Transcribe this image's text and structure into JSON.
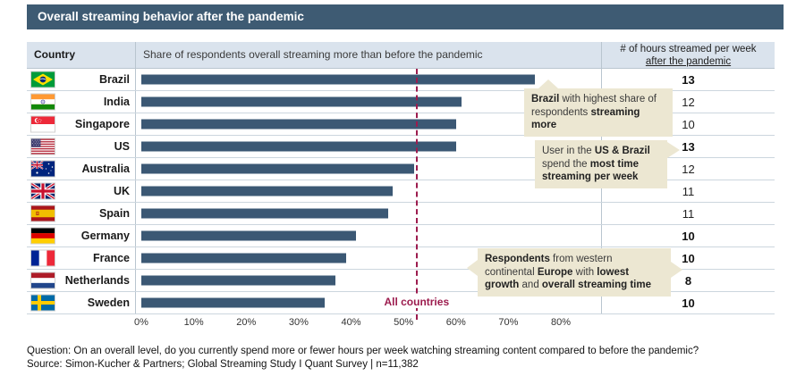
{
  "header": {
    "title": "Overall streaming behavior after the pandemic"
  },
  "table": {
    "columns": {
      "country": "Country",
      "share": "Share of respondents overall streaming more than before the pandemic",
      "hours_line1": "# of hours streamed per week",
      "hours_line2": "after the pandemic"
    }
  },
  "chart_data": {
    "type": "bar",
    "orientation": "horizontal",
    "title": "Overall streaming behavior after the pandemic",
    "categories": [
      "Brazil",
      "India",
      "Singapore",
      "US",
      "Australia",
      "UK",
      "Spain",
      "Germany",
      "France",
      "Netherlands",
      "Sweden"
    ],
    "flag_codes": [
      "br",
      "in",
      "sg",
      "us",
      "au",
      "gb",
      "es",
      "de",
      "fr",
      "nl",
      "se"
    ],
    "series": [
      {
        "name": "Share of respondents overall streaming more than before the pandemic",
        "unit": "%",
        "values": [
          75,
          61,
          60,
          60,
          52,
          48,
          47,
          41,
          39,
          37,
          35
        ]
      },
      {
        "name": "# of hours streamed per week after the pandemic",
        "unit": "hours",
        "values": [
          13,
          12,
          10,
          13,
          12,
          11,
          11,
          10,
          10,
          8,
          10
        ],
        "bold_flags": [
          true,
          false,
          false,
          true,
          false,
          false,
          false,
          true,
          true,
          true,
          true
        ]
      }
    ],
    "xlim": [
      0,
      80
    ],
    "x_ticks": [
      "0%",
      "10%",
      "20%",
      "30%",
      "40%",
      "50%",
      "60%",
      "70%",
      "80%"
    ],
    "grid": "row-separators-only",
    "reference_line": {
      "label": "All countries",
      "value": 52.5
    }
  },
  "annotations": [
    {
      "segments": [
        {
          "t": "Brazil",
          "b": true
        },
        {
          "t": " with highest share of respondents ",
          "b": false
        },
        {
          "t": "streaming more",
          "b": true
        }
      ]
    },
    {
      "segments": [
        {
          "t": "User in the ",
          "b": false
        },
        {
          "t": "US & Brazil",
          "b": true
        },
        {
          "t": " spend the ",
          "b": false
        },
        {
          "t": "most time streaming per week",
          "b": true
        }
      ]
    },
    {
      "segments": [
        {
          "t": "Respondents",
          "b": true
        },
        {
          "t": " from western continental ",
          "b": false
        },
        {
          "t": "Europe",
          "b": true
        },
        {
          "t": " with ",
          "b": false
        },
        {
          "t": "lowest growth",
          "b": true
        },
        {
          "t": " and ",
          "b": false
        },
        {
          "t": "overall streaming time",
          "b": true
        }
      ]
    }
  ],
  "footer": {
    "question": "Question: On an overall level, do you currently spend more or fewer hours per week watching streaming content compared to before the pandemic?",
    "source": "Source: Simon-Kucher & Partners; Global Streaming Study I Quant Survey  |  n=11,382"
  },
  "colors": {
    "title_bar_bg": "#3e5b73",
    "header_row_bg": "#dae3ed",
    "bar": "#3b5874",
    "reference": "#9c1c4e",
    "annotation_bg": "#ece7d2"
  }
}
